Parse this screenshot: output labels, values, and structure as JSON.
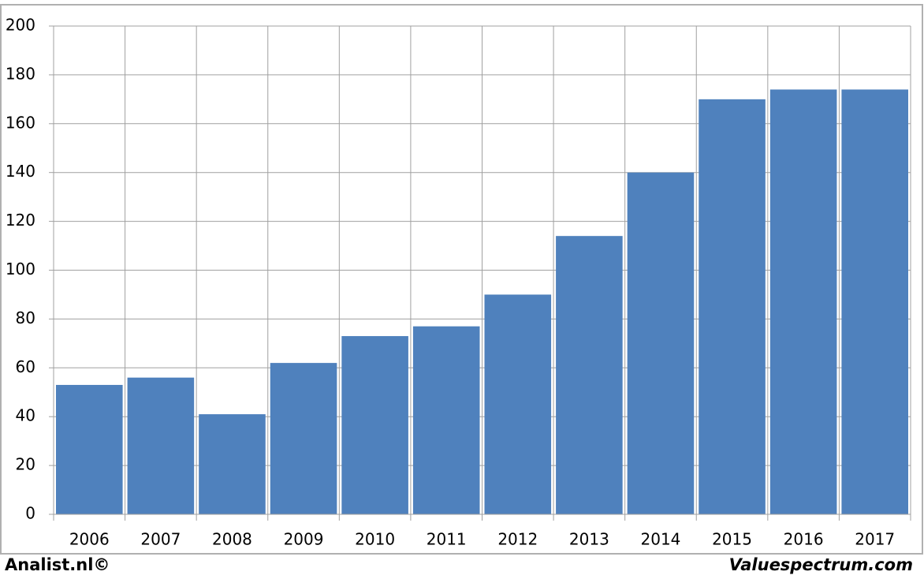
{
  "chart_data": {
    "type": "bar",
    "categories": [
      "2006",
      "2007",
      "2008",
      "2009",
      "2010",
      "2011",
      "2012",
      "2013",
      "2014",
      "2015",
      "2016",
      "2017"
    ],
    "values": [
      53,
      56,
      41,
      62,
      73,
      77,
      90,
      114,
      140,
      170,
      174,
      174
    ],
    "color": "#4f81bd",
    "ylim": [
      0,
      200
    ],
    "yticks": [
      0,
      20,
      40,
      60,
      80,
      100,
      120,
      140,
      160,
      180,
      200
    ],
    "grid": true,
    "footer_left": "Analist.nl©",
    "footer_right": "Valuespectrum.com"
  }
}
